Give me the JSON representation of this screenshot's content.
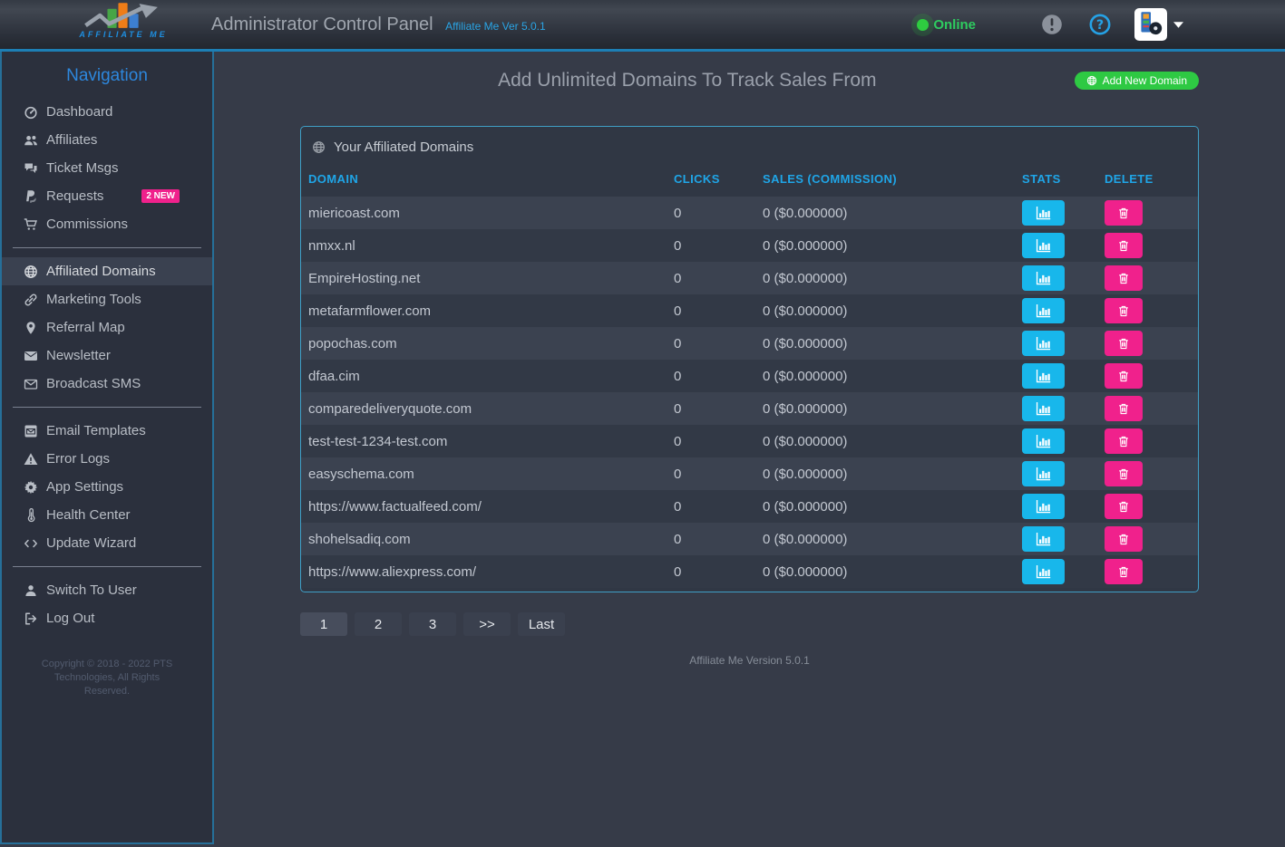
{
  "header": {
    "brand": "AFFILIATE ME",
    "title": "Administrator Control Panel",
    "version_label": "Affiliate Me Ver 5.0.1",
    "online_label": "Online"
  },
  "sidebar": {
    "heading": "Navigation",
    "groups": [
      {
        "items": [
          {
            "label": "Dashboard",
            "icon": "dashboard-icon"
          },
          {
            "label": "Affiliates",
            "icon": "users-icon"
          },
          {
            "label": "Ticket Msgs",
            "icon": "comments-icon"
          },
          {
            "label": "Requests",
            "icon": "paypal-icon",
            "badge": "2 NEW"
          },
          {
            "label": "Commissions",
            "icon": "cart-icon"
          }
        ]
      },
      {
        "items": [
          {
            "label": "Affiliated Domains",
            "icon": "globe-icon",
            "active": true
          },
          {
            "label": "Marketing Tools",
            "icon": "link-icon"
          },
          {
            "label": "Referral Map",
            "icon": "map-marker-icon"
          },
          {
            "label": "Newsletter",
            "icon": "envelope-icon"
          },
          {
            "label": "Broadcast SMS",
            "icon": "envelope-open-icon"
          }
        ]
      },
      {
        "items": [
          {
            "label": "Email Templates",
            "icon": "envelope-square-icon"
          },
          {
            "label": "Error Logs",
            "icon": "warning-icon"
          },
          {
            "label": "App Settings",
            "icon": "gear-icon"
          },
          {
            "label": "Health Center",
            "icon": "thermometer-icon"
          },
          {
            "label": "Update Wizard",
            "icon": "code-icon"
          }
        ]
      },
      {
        "items": [
          {
            "label": "Switch To User",
            "icon": "user-icon"
          },
          {
            "label": "Log Out",
            "icon": "sign-out-icon"
          }
        ]
      }
    ],
    "copyright": "Copyright © 2018 - 2022 PTS Technologies, All Rights Reserved."
  },
  "main": {
    "heading": "Add Unlimited Domains To Track Sales From",
    "add_button_label": "Add New Domain",
    "panel": {
      "title": "Your Affiliated Domains",
      "columns": [
        "DOMAIN",
        "CLICKS",
        "SALES (COMMISSION)",
        "STATS",
        "DELETE"
      ],
      "rows": [
        {
          "domain": "miericoast.com",
          "clicks": "0",
          "sales": "0 ($0.000000)"
        },
        {
          "domain": "nmxx.nl",
          "clicks": "0",
          "sales": "0 ($0.000000)"
        },
        {
          "domain": "EmpireHosting.net",
          "clicks": "0",
          "sales": "0 ($0.000000)"
        },
        {
          "domain": "metafarmflower.com",
          "clicks": "0",
          "sales": "0 ($0.000000)"
        },
        {
          "domain": "popochas.com",
          "clicks": "0",
          "sales": "0 ($0.000000)"
        },
        {
          "domain": "dfaa.cim",
          "clicks": "0",
          "sales": "0 ($0.000000)"
        },
        {
          "domain": "comparedeliveryquote.com",
          "clicks": "0",
          "sales": "0 ($0.000000)"
        },
        {
          "domain": "test-test-1234-test.com",
          "clicks": "0",
          "sales": "0 ($0.000000)"
        },
        {
          "domain": "easyschema.com",
          "clicks": "0",
          "sales": "0 ($0.000000)"
        },
        {
          "domain": "https://www.factualfeed.com/",
          "clicks": "0",
          "sales": "0 ($0.000000)"
        },
        {
          "domain": "shohelsadiq.com",
          "clicks": "0",
          "sales": "0 ($0.000000)"
        },
        {
          "domain": "https://www.aliexpress.com/",
          "clicks": "0",
          "sales": "0 ($0.000000)"
        }
      ]
    },
    "pagination": [
      "1",
      "2",
      "3",
      ">>",
      "Last"
    ],
    "footer": "Affiliate Me Version 5.0.1"
  },
  "colors": {
    "accent_blue": "#1fa6e8",
    "nav_blue": "#2d87dd",
    "stats_blue": "#18b7eb",
    "pink": "#f0218c",
    "green": "#2ec943",
    "online_green": "#2ecc5f",
    "panel_border": "#3f9fc6"
  }
}
